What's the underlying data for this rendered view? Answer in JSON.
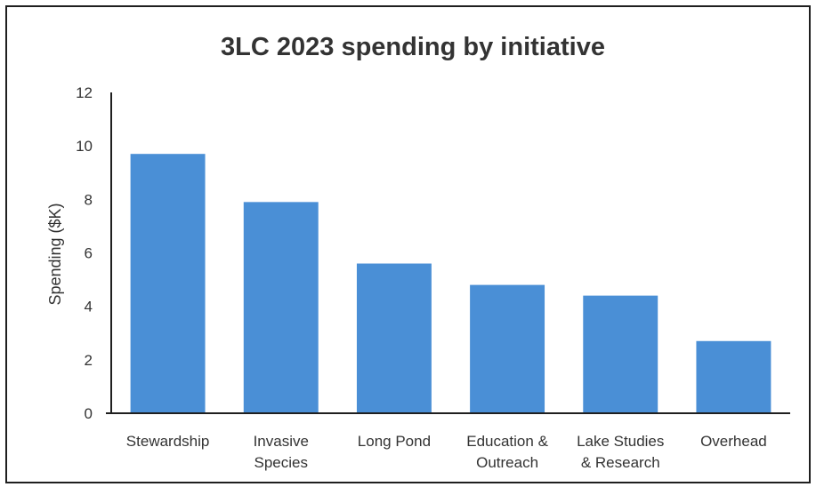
{
  "chart_data": {
    "type": "bar",
    "title": "3LC 2023 spending by initiative",
    "ylabel": "Spending ($K)",
    "xlabel": "",
    "categories": [
      [
        "Stewardship"
      ],
      [
        "Invasive",
        "Species"
      ],
      [
        "Long Pond"
      ],
      [
        "Education &",
        "Outreach"
      ],
      [
        "Lake Studies",
        "& Research"
      ],
      [
        "Overhead"
      ]
    ],
    "values": [
      9.7,
      7.9,
      5.6,
      4.8,
      4.4,
      2.7
    ],
    "ylim": [
      0,
      12
    ],
    "yticks": [
      "0",
      "2",
      "4",
      "6",
      "8",
      "10",
      "12"
    ],
    "bar_color": "#4a8fd6",
    "grid": false,
    "legend": "none"
  }
}
